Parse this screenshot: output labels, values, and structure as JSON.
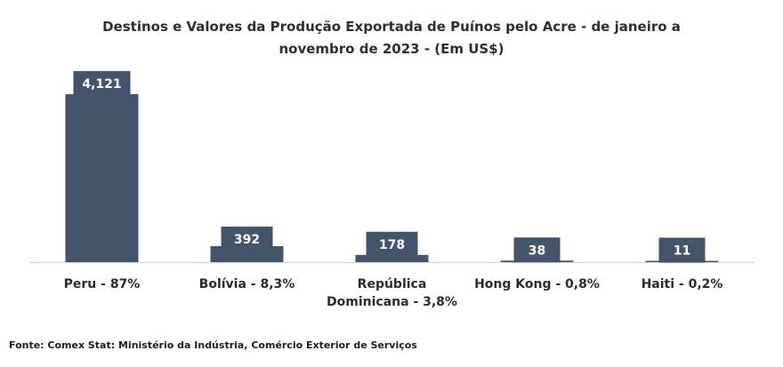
{
  "title": {
    "line1": "Destinos e Valores da Produção Exportada de Puínos pelo Acre - de janeiro a",
    "line2": "novembro de 2023 - (Em US$)"
  },
  "source": "Fonte: Comex Stat: Ministério da Indústria, Comércio Exterior de Serviços",
  "colors": {
    "bar": "#44546a",
    "axis": "#d9d9d9",
    "label_text": "#ffffff"
  },
  "chart_data": {
    "type": "bar",
    "title": "Destinos e Valores da Produção Exportada de Puínos pelo Acre - de janeiro a novembro de 2023 - (Em US$)",
    "categories": [
      [
        "Peru - 87%"
      ],
      [
        "Bolívia - 8,3%"
      ],
      [
        "República",
        "Dominicana - 3,8%"
      ],
      [
        "Hong Kong - 0,8%"
      ],
      [
        "Haiti - 0,2%"
      ]
    ],
    "values": [
      4121,
      392,
      178,
      38,
      11
    ],
    "data_labels": [
      "4,121",
      "392",
      "178",
      "38",
      "11"
    ],
    "ylim": [
      0,
      4121
    ],
    "grid": false,
    "legend": "none"
  }
}
